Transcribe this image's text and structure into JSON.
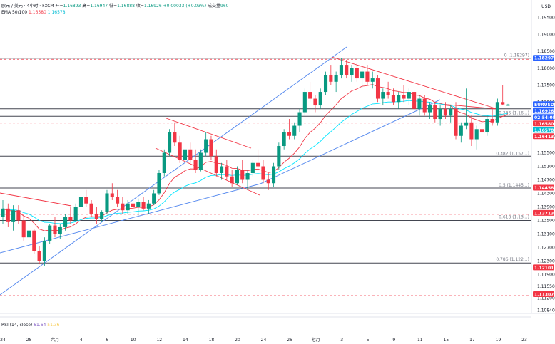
{
  "header": {
    "symbol_line": "欧元 / 美元 · 4小时 · FXCM",
    "open_label": "开=",
    "open": "1.16893",
    "high_label": "高=",
    "high": "1.16947",
    "low_label": "低=",
    "low": "1.16888",
    "close_label": "收=",
    "close": "1.16926",
    "change": "+0.00033 (+0.03%)",
    "volume_label": "成交量",
    "volume": "960",
    "ema_label": "EMA 50/100",
    "ema50": "1.16580",
    "ema100": "1.16578",
    "currency": "USD"
  },
  "rsi": {
    "label": "RSI (14, close)",
    "v1": "61.64",
    "v2": "51.36"
  },
  "colors": {
    "up": "#089981",
    "down": "#f23645",
    "ema50": "#f23645",
    "ema100": "#00e5ff",
    "channel": "#5b8def",
    "wedge": "#f23645",
    "level": "#434651",
    "blue_tag": "#2962ff",
    "red_tag": "#f23645"
  },
  "chart_data": {
    "type": "candlestick",
    "y_ticks": [
      "1.19500",
      "1.19000",
      "1.18500",
      "1.18000",
      "1.17500",
      "1.17000",
      "1.16500",
      "1.16000",
      "1.15500",
      "1.15100",
      "1.14700",
      "1.14300",
      "1.13900",
      "1.13500",
      "1.13100",
      "1.12700",
      "1.12300",
      "1.11900",
      "1.11550",
      "1.11200",
      "1.10840"
    ],
    "ylim": [
      1.1075,
      1.1985
    ],
    "x_ticks": [
      "24",
      "28",
      "六月",
      "4",
      "6",
      "10",
      "12",
      "14",
      "18",
      "20",
      "24",
      "26",
      "七月",
      "3",
      "5",
      "9",
      "11",
      "15",
      "17",
      "19",
      "23"
    ],
    "fib_levels": [
      {
        "label": "0 (1.18297)",
        "value": 1.18297
      },
      {
        "label": "0.236 (1.16...)",
        "value": 1.166
      },
      {
        "label": "0.382 (1.157...)",
        "value": 1.154
      },
      {
        "label": "0.5 (1.1445...)",
        "value": 1.1446
      },
      {
        "label": "0.618 (1.13...)",
        "value": 1.1352
      },
      {
        "label": "0.786 (1.122...)",
        "value": 1.1227
      }
    ],
    "price_tags": [
      {
        "text": "1.18297",
        "value": 1.18297,
        "kind": "blue"
      },
      {
        "text": "EURUSD",
        "value": 1.16926,
        "kind": "blue"
      },
      {
        "text": "1.16926",
        "value": 1.16926,
        "kind": "blue"
      },
      {
        "text": "02:54:05",
        "value": 1.16926,
        "kind": "blue"
      },
      {
        "text": "1.16580",
        "value": 1.1658,
        "kind": "red"
      },
      {
        "text": "1.16578",
        "value": 1.16578,
        "kind": "cyan"
      },
      {
        "text": "1.16413",
        "value": 1.16413,
        "kind": "red"
      },
      {
        "text": "1.14458",
        "value": 1.14458,
        "kind": "red"
      },
      {
        "text": "1.13713",
        "value": 1.13713,
        "kind": "red"
      },
      {
        "text": "1.12101",
        "value": 1.12101,
        "kind": "red"
      },
      {
        "text": "1.11307",
        "value": 1.11307,
        "kind": "red"
      }
    ],
    "dashed_levels": [
      1.18297,
      1.16413,
      1.14458,
      1.13713,
      1.12101,
      1.11307
    ],
    "horizontal_levels": [
      1.18297,
      1.168,
      1.1658,
      1.154,
      1.14458,
      1.135,
      1.1224
    ],
    "candles": [
      [
        1.136,
        1.141,
        1.134,
        1.1385
      ],
      [
        1.1385,
        1.14,
        1.133,
        1.1345
      ],
      [
        1.1345,
        1.1395,
        1.132,
        1.138
      ],
      [
        1.138,
        1.1395,
        1.134,
        1.135
      ],
      [
        1.135,
        1.137,
        1.129,
        1.13
      ],
      [
        1.13,
        1.133,
        1.128,
        1.132
      ],
      [
        1.132,
        1.1325,
        1.125,
        1.126
      ],
      [
        1.126,
        1.1275,
        1.122,
        1.123
      ],
      [
        1.123,
        1.13,
        1.1215,
        1.129
      ],
      [
        1.129,
        1.134,
        1.128,
        1.1335
      ],
      [
        1.1335,
        1.136,
        1.13,
        1.131
      ],
      [
        1.131,
        1.134,
        1.1295,
        1.133
      ],
      [
        1.133,
        1.137,
        1.132,
        1.136
      ],
      [
        1.136,
        1.139,
        1.134,
        1.135
      ],
      [
        1.135,
        1.14,
        1.1345,
        1.139
      ],
      [
        1.139,
        1.143,
        1.138,
        1.142
      ],
      [
        1.142,
        1.144,
        1.139,
        1.14
      ],
      [
        1.14,
        1.141,
        1.136,
        1.137
      ],
      [
        1.137,
        1.139,
        1.134,
        1.1355
      ],
      [
        1.1355,
        1.138,
        1.1345,
        1.1375
      ],
      [
        1.1375,
        1.144,
        1.137,
        1.143
      ],
      [
        1.143,
        1.146,
        1.141,
        1.142
      ],
      [
        1.142,
        1.144,
        1.139,
        1.14
      ],
      [
        1.14,
        1.142,
        1.137,
        1.138
      ],
      [
        1.138,
        1.141,
        1.137,
        1.14
      ],
      [
        1.14,
        1.143,
        1.138,
        1.139
      ],
      [
        1.139,
        1.1415,
        1.1365,
        1.1405
      ],
      [
        1.1405,
        1.142,
        1.138,
        1.1385
      ],
      [
        1.1385,
        1.141,
        1.137,
        1.14
      ],
      [
        1.14,
        1.144,
        1.1395,
        1.143
      ],
      [
        1.143,
        1.15,
        1.1425,
        1.149
      ],
      [
        1.149,
        1.156,
        1.148,
        1.155
      ],
      [
        1.155,
        1.162,
        1.154,
        1.161
      ],
      [
        1.161,
        1.164,
        1.157,
        1.158
      ],
      [
        1.158,
        1.16,
        1.152,
        1.153
      ],
      [
        1.153,
        1.157,
        1.151,
        1.156
      ],
      [
        1.156,
        1.158,
        1.152,
        1.153
      ],
      [
        1.153,
        1.156,
        1.149,
        1.15
      ],
      [
        1.15,
        1.156,
        1.1495,
        1.155
      ],
      [
        1.155,
        1.161,
        1.154,
        1.159
      ],
      [
        1.159,
        1.16,
        1.153,
        1.154
      ],
      [
        1.154,
        1.156,
        1.148,
        1.149
      ],
      [
        1.149,
        1.152,
        1.147,
        1.151
      ],
      [
        1.151,
        1.153,
        1.147,
        1.148
      ],
      [
        1.148,
        1.15,
        1.145,
        1.146
      ],
      [
        1.146,
        1.151,
        1.1455,
        1.15
      ],
      [
        1.15,
        1.153,
        1.146,
        1.147
      ],
      [
        1.147,
        1.15,
        1.144,
        1.149
      ],
      [
        1.149,
        1.153,
        1.148,
        1.152
      ],
      [
        1.152,
        1.156,
        1.15,
        1.151
      ],
      [
        1.151,
        1.153,
        1.146,
        1.147
      ],
      [
        1.147,
        1.149,
        1.144,
        1.146
      ],
      [
        1.146,
        1.152,
        1.145,
        1.151
      ],
      [
        1.151,
        1.158,
        1.15,
        1.157
      ],
      [
        1.157,
        1.162,
        1.156,
        1.161
      ],
      [
        1.161,
        1.165,
        1.159,
        1.16
      ],
      [
        1.16,
        1.164,
        1.159,
        1.163
      ],
      [
        1.163,
        1.168,
        1.161,
        1.167
      ],
      [
        1.167,
        1.174,
        1.166,
        1.173
      ],
      [
        1.173,
        1.176,
        1.17,
        1.171
      ],
      [
        1.171,
        1.172,
        1.167,
        1.169
      ],
      [
        1.169,
        1.174,
        1.168,
        1.173
      ],
      [
        1.173,
        1.179,
        1.172,
        1.178
      ],
      [
        1.178,
        1.181,
        1.175,
        1.176
      ],
      [
        1.176,
        1.179,
        1.173,
        1.178
      ],
      [
        1.178,
        1.183,
        1.177,
        1.181
      ],
      [
        1.181,
        1.1825,
        1.177,
        1.178
      ],
      [
        1.178,
        1.181,
        1.176,
        1.18
      ],
      [
        1.18,
        1.1815,
        1.176,
        1.177
      ],
      [
        1.177,
        1.18,
        1.174,
        1.179
      ],
      [
        1.179,
        1.181,
        1.175,
        1.176
      ],
      [
        1.176,
        1.179,
        1.174,
        1.177
      ],
      [
        1.177,
        1.178,
        1.17,
        1.171
      ],
      [
        1.171,
        1.174,
        1.169,
        1.173
      ],
      [
        1.173,
        1.176,
        1.171,
        1.172
      ],
      [
        1.172,
        1.174,
        1.169,
        1.17
      ],
      [
        1.17,
        1.173,
        1.168,
        1.172
      ],
      [
        1.172,
        1.175,
        1.17,
        1.171
      ],
      [
        1.171,
        1.174,
        1.169,
        1.173
      ],
      [
        1.173,
        1.1735,
        1.167,
        1.168
      ],
      [
        1.168,
        1.172,
        1.166,
        1.171
      ],
      [
        1.171,
        1.172,
        1.166,
        1.167
      ],
      [
        1.167,
        1.17,
        1.165,
        1.169
      ],
      [
        1.169,
        1.17,
        1.164,
        1.165
      ],
      [
        1.165,
        1.169,
        1.163,
        1.168
      ],
      [
        1.168,
        1.17,
        1.165,
        1.166
      ],
      [
        1.166,
        1.169,
        1.164,
        1.168
      ],
      [
        1.168,
        1.17,
        1.159,
        1.16
      ],
      [
        1.16,
        1.164,
        1.158,
        1.163
      ],
      [
        1.163,
        1.174,
        1.162,
        1.164
      ],
      [
        1.164,
        1.166,
        1.157,
        1.159
      ],
      [
        1.159,
        1.163,
        1.156,
        1.162
      ],
      [
        1.162,
        1.165,
        1.16,
        1.161
      ],
      [
        1.161,
        1.166,
        1.16,
        1.165
      ],
      [
        1.165,
        1.168,
        1.163,
        1.164
      ],
      [
        1.164,
        1.171,
        1.163,
        1.17
      ],
      [
        1.17,
        1.175,
        1.169,
        1.1693
      ],
      [
        1.16893,
        1.16947,
        1.16888,
        1.16926
      ]
    ]
  }
}
